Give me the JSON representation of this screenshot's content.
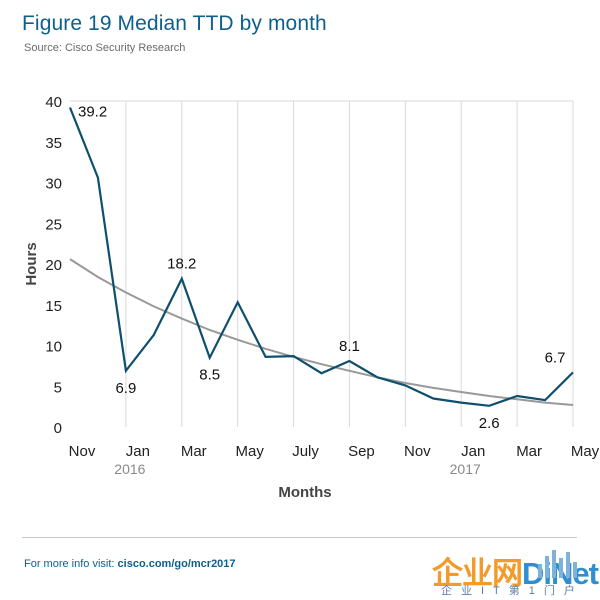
{
  "header": {
    "title": "Figure 19  Median TTD by month",
    "subtitle": "Source: Cisco Security Research"
  },
  "footer": {
    "prefix": "For more info visit: ",
    "url": "cisco.com/go/mcr2017"
  },
  "watermark": {
    "logo_main": "企业网",
    "logo_accent": "DiNet",
    "tagline": "企业IT第1门户"
  },
  "colors": {
    "series": "#0e4f6e",
    "trend": "#999999",
    "grid": "#d9d9d9",
    "title": "#0d5f8c"
  },
  "chart_data": {
    "type": "line",
    "xlabel": "Months",
    "ylabel": "Hours",
    "ylim": [
      0,
      40
    ],
    "yticks": [
      0,
      5,
      10,
      15,
      20,
      25,
      30,
      35,
      40
    ],
    "x_months": [
      "2015-11",
      "2015-12",
      "2016-01",
      "2016-02",
      "2016-03",
      "2016-04",
      "2016-05",
      "2016-06",
      "2016-07",
      "2016-08",
      "2016-09",
      "2016-10",
      "2016-11",
      "2016-12",
      "2017-01",
      "2017-02",
      "2017-03",
      "2017-04",
      "2017-05"
    ],
    "xtick_labels": [
      {
        "month": "2015-11",
        "label": "Nov",
        "year": ""
      },
      {
        "month": "2016-01",
        "label": "Jan",
        "year": "2016"
      },
      {
        "month": "2016-03",
        "label": "Mar",
        "year": ""
      },
      {
        "month": "2016-05",
        "label": "May",
        "year": ""
      },
      {
        "month": "2016-07",
        "label": "July",
        "year": ""
      },
      {
        "month": "2016-09",
        "label": "Sep",
        "year": ""
      },
      {
        "month": "2016-11",
        "label": "Nov",
        "year": ""
      },
      {
        "month": "2017-01",
        "label": "Jan",
        "year": "2017"
      },
      {
        "month": "2017-03",
        "label": "Mar",
        "year": ""
      },
      {
        "month": "2017-05",
        "label": "May",
        "year": ""
      }
    ],
    "series": [
      {
        "values": [
          39.2,
          30.6,
          6.9,
          11.3,
          18.2,
          8.5,
          15.3,
          8.6,
          8.7,
          6.6,
          8.1,
          6.1,
          5.1,
          3.5,
          3.0,
          2.6,
          3.8,
          3.3,
          6.7
        ]
      }
    ],
    "trend": {
      "values": [
        20.6,
        18.4,
        16.5,
        14.8,
        13.3,
        11.9,
        10.7,
        9.6,
        8.6,
        7.7,
        6.9,
        6.1,
        5.4,
        4.8,
        4.3,
        3.8,
        3.4,
        3.0,
        2.7
      ]
    },
    "annotations": [
      {
        "month": "2015-11",
        "text": "39.2",
        "pos": "right"
      },
      {
        "month": "2016-01",
        "text": "6.9",
        "pos": "below"
      },
      {
        "month": "2016-03",
        "text": "18.2",
        "pos": "above"
      },
      {
        "month": "2016-04",
        "text": "8.5",
        "pos": "below"
      },
      {
        "month": "2016-09",
        "text": "8.1",
        "pos": "above"
      },
      {
        "month": "2017-02",
        "text": "2.6",
        "pos": "below"
      },
      {
        "month": "2017-05",
        "text": "6.7",
        "pos": "above-left"
      }
    ],
    "grid": true
  }
}
